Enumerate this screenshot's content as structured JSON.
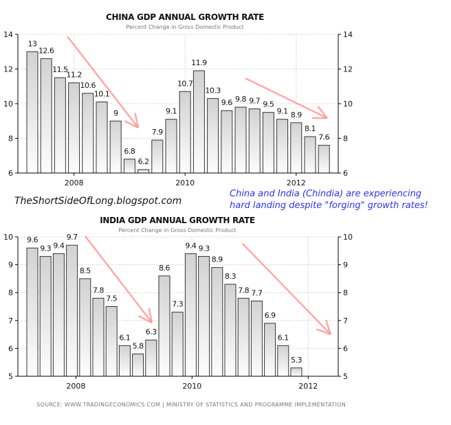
{
  "annotations": {
    "blog": "TheShortSideOfLong.blogspot.com",
    "note_line1": "China and India (Chindia) are experiencing",
    "note_line2": "hard landing despite \"forging\" growth rates!",
    "arrow_color": "#ff9a9a"
  },
  "source": "SOURCE:  WWW.TRADINGECONOMICS.COM  |  MINISTRY  OF  STATISTICS  AND  PROGRAMME  IMPLEMENTATION",
  "chart_data": [
    {
      "type": "bar",
      "title": "CHINA GDP ANNUAL GROWTH RATE",
      "subtitle": "Percent Change in Gross Domestic Product",
      "values": [
        13,
        12.6,
        11.5,
        11.2,
        10.6,
        10.1,
        9,
        6.8,
        6.2,
        7.9,
        9.1,
        10.7,
        11.9,
        10.3,
        9.6,
        9.8,
        9.7,
        9.5,
        9.1,
        8.9,
        8.1,
        7.6
      ],
      "ylim": [
        6,
        14
      ],
      "yticks": [
        "6",
        "8",
        "10",
        "12",
        "14"
      ],
      "x_ticks": [
        {
          "label": "2008",
          "at_bar": 3
        },
        {
          "label": "2010",
          "at_bar": 11
        },
        {
          "label": "2012",
          "at_bar": 19
        }
      ],
      "grid": true,
      "bar_color": "#d4d4d4"
    },
    {
      "type": "bar",
      "title": "INDIA GDP ANNUAL GROWTH RATE",
      "subtitle": "Percent Change in Gross Domestic Product",
      "values": [
        9.6,
        9.3,
        9.4,
        9.7,
        8.5,
        7.8,
        7.5,
        6.1,
        5.8,
        6.3,
        8.6,
        7.3,
        9.4,
        9.3,
        8.9,
        8.3,
        7.8,
        7.7,
        6.9,
        6.1,
        5.3
      ],
      "ylim": [
        5,
        10
      ],
      "yticks": [
        "5",
        "6",
        "7",
        "8",
        "9",
        "10"
      ],
      "x_ticks": [
        {
          "label": "2008",
          "at_bar": 3.3
        },
        {
          "label": "2010",
          "at_bar": 12.1
        },
        {
          "label": "2012",
          "at_bar": 20.9
        }
      ],
      "grid": true,
      "bar_color": "#d4d4d4"
    }
  ]
}
